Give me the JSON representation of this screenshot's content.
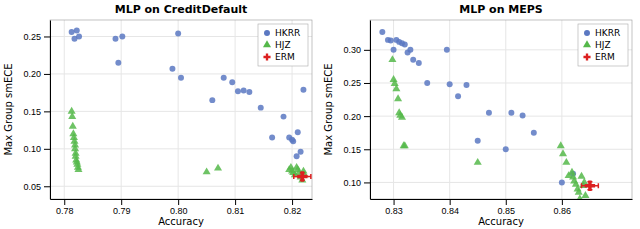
{
  "chart_data": [
    {
      "type": "scatter",
      "title": "MLP on CreditDefault",
      "x_label": "Accuracy",
      "y_label": "Max Group smECE",
      "xlim": [
        0.7775,
        0.8235
      ],
      "ylim": [
        0.033,
        0.272
      ],
      "xticks": [
        0.78,
        0.79,
        {
          "value": 0.8,
          "label": "0.80"
        },
        0.81,
        0.82
      ],
      "yticks": [
        0.05,
        {
          "value": 0.1,
          "label": "0.10"
        },
        0.15,
        {
          "value": 0.2,
          "label": "0.20"
        },
        0.25
      ],
      "grid": true,
      "legend": "upper right",
      "series": [
        {
          "name": "HKRR",
          "color": "#5b78c2",
          "marker": "circle",
          "x": [
            0.7813,
            0.7818,
            0.7822,
            0.7826,
            0.789,
            0.7895,
            0.7902,
            0.799,
            0.8,
            0.8005,
            0.806,
            0.808,
            0.8095,
            0.8105,
            0.8115,
            0.8125,
            0.8145,
            0.8165,
            0.8185,
            0.8195,
            0.82,
            0.8202,
            0.8208,
            0.821,
            0.8215,
            0.822
          ],
          "values": [
            0.256,
            0.247,
            0.258,
            0.25,
            0.247,
            0.215,
            0.25,
            0.207,
            0.254,
            0.195,
            0.165,
            0.195,
            0.189,
            0.177,
            0.178,
            0.176,
            0.155,
            0.115,
            0.143,
            0.115,
            0.112,
            0.11,
            0.09,
            0.122,
            0.096,
            0.179
          ]
        },
        {
          "name": "HJZ",
          "color": "#55b84a",
          "marker": "triangle",
          "x": [
            0.7813,
            0.7814,
            0.7815,
            0.7816,
            0.7817,
            0.7818,
            0.7819,
            0.7819,
            0.782,
            0.782,
            0.7821,
            0.7822,
            0.7823,
            0.7824,
            0.7825,
            0.805,
            0.807,
            0.8195,
            0.8198,
            0.82,
            0.8202,
            0.8205,
            0.8208,
            0.821,
            0.8212,
            0.8215,
            0.8218,
            0.822,
            0.8222
          ],
          "values": [
            0.15,
            0.143,
            0.13,
            0.12,
            0.115,
            0.11,
            0.105,
            0.1,
            0.094,
            0.09,
            0.085,
            0.082,
            0.079,
            0.075,
            0.072,
            0.069,
            0.074,
            0.072,
            0.075,
            0.07,
            0.068,
            0.065,
            0.075,
            0.072,
            0.068,
            0.062,
            0.058,
            0.07,
            0.065
          ]
        },
        {
          "name": "ERM",
          "color": "#dc2020",
          "marker": "plus",
          "x": [
            0.8218
          ],
          "values": [
            0.063
          ],
          "x_error": 0.0015,
          "y_error": 0.005
        }
      ]
    },
    {
      "type": "scatter",
      "title": "MLP on MEPS",
      "x_label": "Accuracy",
      "y_label": "Max Group smECE",
      "xlim": [
        0.8258,
        0.8725
      ],
      "ylim": [
        0.075,
        0.345
      ],
      "xticks": [
        0.83,
        0.84,
        0.85,
        0.86
      ],
      "yticks": [
        {
          "value": 0.1,
          "label": "0.10"
        },
        0.15,
        {
          "value": 0.2,
          "label": "0.20"
        },
        0.25,
        {
          "value": 0.3,
          "label": "0.30"
        }
      ],
      "grid": true,
      "legend": "upper right",
      "series": [
        {
          "name": "HKRR",
          "color": "#5b78c2",
          "marker": "circle",
          "x": [
            0.828,
            0.829,
            0.8295,
            0.83,
            0.8305,
            0.831,
            0.8315,
            0.832,
            0.8325,
            0.833,
            0.8335,
            0.8345,
            0.836,
            0.8395,
            0.84,
            0.8415,
            0.843,
            0.845,
            0.847,
            0.85,
            0.851,
            0.853,
            0.855,
            0.86,
            0.862
          ],
          "values": [
            0.327,
            0.315,
            0.314,
            0.3,
            0.315,
            0.312,
            0.31,
            0.308,
            0.296,
            0.3,
            0.285,
            0.28,
            0.25,
            0.3,
            0.248,
            0.23,
            0.247,
            0.163,
            0.205,
            0.15,
            0.205,
            0.201,
            0.175,
            0.1,
            0.113
          ]
        },
        {
          "name": "HJZ",
          "color": "#55b84a",
          "marker": "triangle",
          "x": [
            0.8298,
            0.83,
            0.8302,
            0.8305,
            0.8308,
            0.831,
            0.8312,
            0.8315,
            0.8318,
            0.832,
            0.845,
            0.8598,
            0.8602,
            0.8608,
            0.8612,
            0.8618,
            0.862,
            0.8622,
            0.8625,
            0.8628,
            0.863,
            0.8632,
            0.8635,
            0.8638,
            0.864,
            0.8642
          ],
          "values": [
            0.285,
            0.255,
            0.249,
            0.241,
            0.226,
            0.205,
            0.201,
            0.198,
            0.155,
            0.155,
            0.13,
            0.155,
            0.143,
            0.13,
            0.11,
            0.115,
            0.108,
            0.102,
            0.097,
            0.09,
            0.085,
            0.075,
            0.109,
            0.095,
            0.1,
            0.08
          ]
        },
        {
          "name": "ERM",
          "color": "#dc2020",
          "marker": "plus",
          "x": [
            0.865
          ],
          "values": [
            0.095
          ],
          "x_error": 0.0015,
          "y_error": 0.006
        }
      ]
    }
  ]
}
